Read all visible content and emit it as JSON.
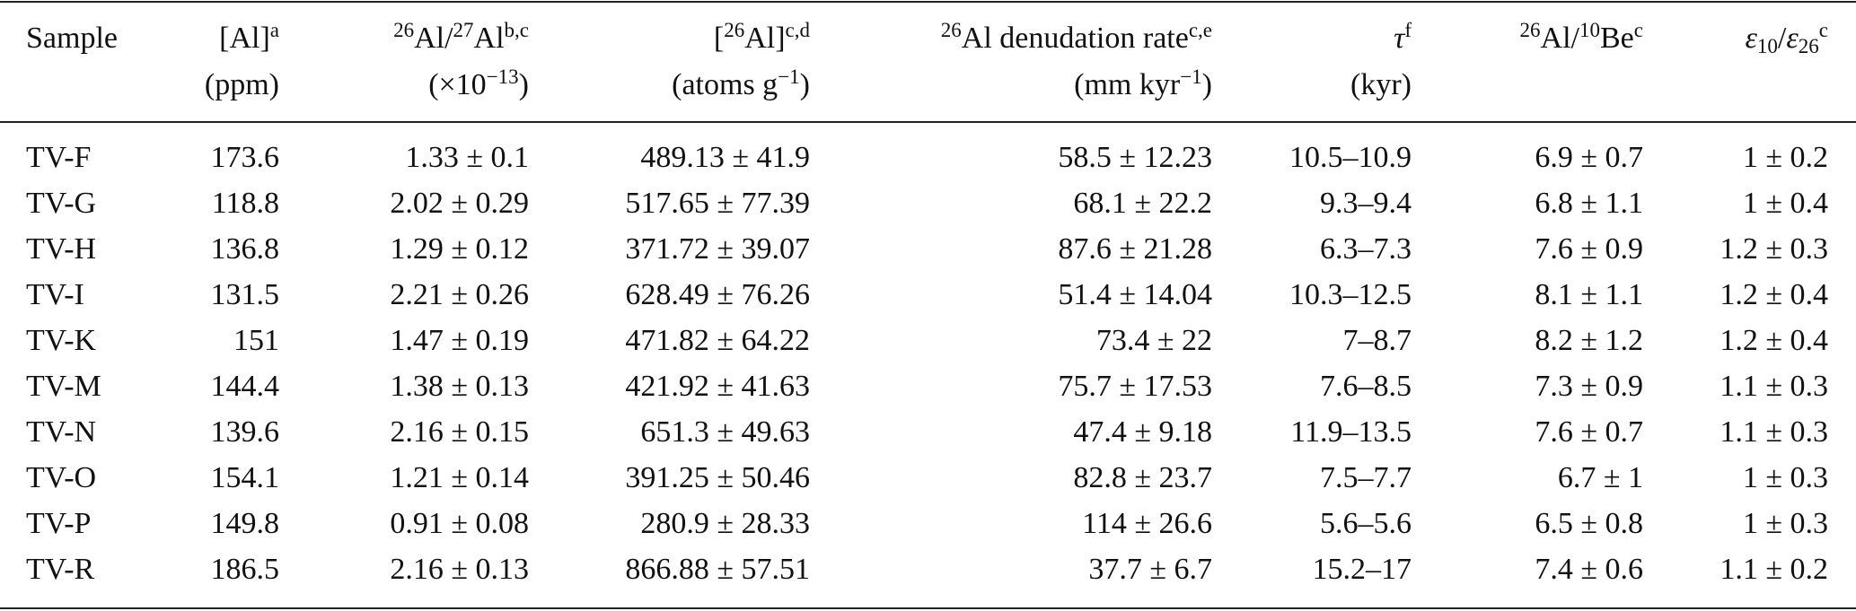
{
  "table": {
    "header": [
      {
        "lines": [
          [
            "Sample"
          ],
          []
        ]
      },
      {
        "lines": [
          [
            "[Al]",
            {
              "sup": "a"
            }
          ],
          [
            "(ppm)"
          ]
        ]
      },
      {
        "lines": [
          [
            {
              "sup": "26"
            },
            "Al/",
            {
              "sup": "27"
            },
            "Al",
            {
              "sup": "b,c"
            }
          ],
          [
            "(×10",
            {
              "sup": "−13"
            },
            ")"
          ]
        ]
      },
      {
        "lines": [
          [
            "[",
            {
              "sup": "26"
            },
            "Al]",
            {
              "sup": "c,d"
            }
          ],
          [
            "(atoms g",
            {
              "sup": "−1"
            },
            ")"
          ]
        ]
      },
      {
        "lines": [
          [
            {
              "sup": "26"
            },
            "Al denudation rate",
            {
              "sup": "c,e"
            }
          ],
          [
            "(mm kyr",
            {
              "sup": "−1"
            },
            ")"
          ]
        ]
      },
      {
        "lines": [
          [
            {
              "i": "τ"
            },
            {
              "sup": "f"
            }
          ],
          [
            "(kyr)"
          ]
        ]
      },
      {
        "lines": [
          [
            {
              "sup": "26"
            },
            "Al/",
            {
              "sup": "10"
            },
            "Be",
            {
              "sup": "c"
            }
          ],
          []
        ]
      },
      {
        "lines": [
          [
            {
              "i": "ε"
            },
            {
              "sub": "10"
            },
            "/",
            {
              "i": "ε"
            },
            {
              "sub": "26"
            },
            {
              "sup": "c"
            }
          ],
          []
        ]
      }
    ],
    "rows": [
      [
        "TV-F",
        "173.6",
        "1.33 ± 0.1",
        "489.13 ± 41.9",
        "58.5 ± 12.23",
        "10.5–10.9",
        "6.9 ± 0.7",
        "1 ± 0.2"
      ],
      [
        "TV-G",
        "118.8",
        "2.02 ± 0.29",
        "517.65 ± 77.39",
        "68.1 ± 22.2",
        "9.3–9.4",
        "6.8 ± 1.1",
        "1 ± 0.4"
      ],
      [
        "TV-H",
        "136.8",
        "1.29 ± 0.12",
        "371.72 ± 39.07",
        "87.6 ± 21.28",
        "6.3–7.3",
        "7.6 ± 0.9",
        "1.2 ± 0.3"
      ],
      [
        "TV-I",
        "131.5",
        "2.21 ± 0.26",
        "628.49 ± 76.26",
        "51.4 ± 14.04",
        "10.3–12.5",
        "8.1 ± 1.1",
        "1.2 ± 0.4"
      ],
      [
        "TV-K",
        "151",
        "1.47 ± 0.19",
        "471.82 ± 64.22",
        "73.4 ± 22",
        "7–8.7",
        "8.2 ± 1.2",
        "1.2 ± 0.4"
      ],
      [
        "TV-M",
        "144.4",
        "1.38 ± 0.13",
        "421.92 ± 41.63",
        "75.7 ± 17.53",
        "7.6–8.5",
        "7.3 ± 0.9",
        "1.1 ± 0.3"
      ],
      [
        "TV-N",
        "139.6",
        "2.16 ± 0.15",
        "651.3 ± 49.63",
        "47.4 ± 9.18",
        "11.9–13.5",
        "7.6 ± 0.7",
        "1.1 ± 0.3"
      ],
      [
        "TV-O",
        "154.1",
        "1.21 ± 0.14",
        "391.25 ± 50.46",
        "82.8 ± 23.7",
        "7.5–7.7",
        "6.7 ± 1",
        "1 ± 0.3"
      ],
      [
        "TV-P",
        "149.8",
        "0.91 ± 0.08",
        "280.9 ± 28.33",
        "114 ± 26.6",
        "5.6–5.6",
        "6.5 ± 0.8",
        "1 ± 0.3"
      ],
      [
        "TV-R",
        "186.5",
        "2.16 ± 0.13",
        "866.88 ± 57.51",
        "37.7 ± 6.7",
        "15.2–17",
        "7.4 ± 0.6",
        "1.1 ± 0.2"
      ]
    ]
  }
}
